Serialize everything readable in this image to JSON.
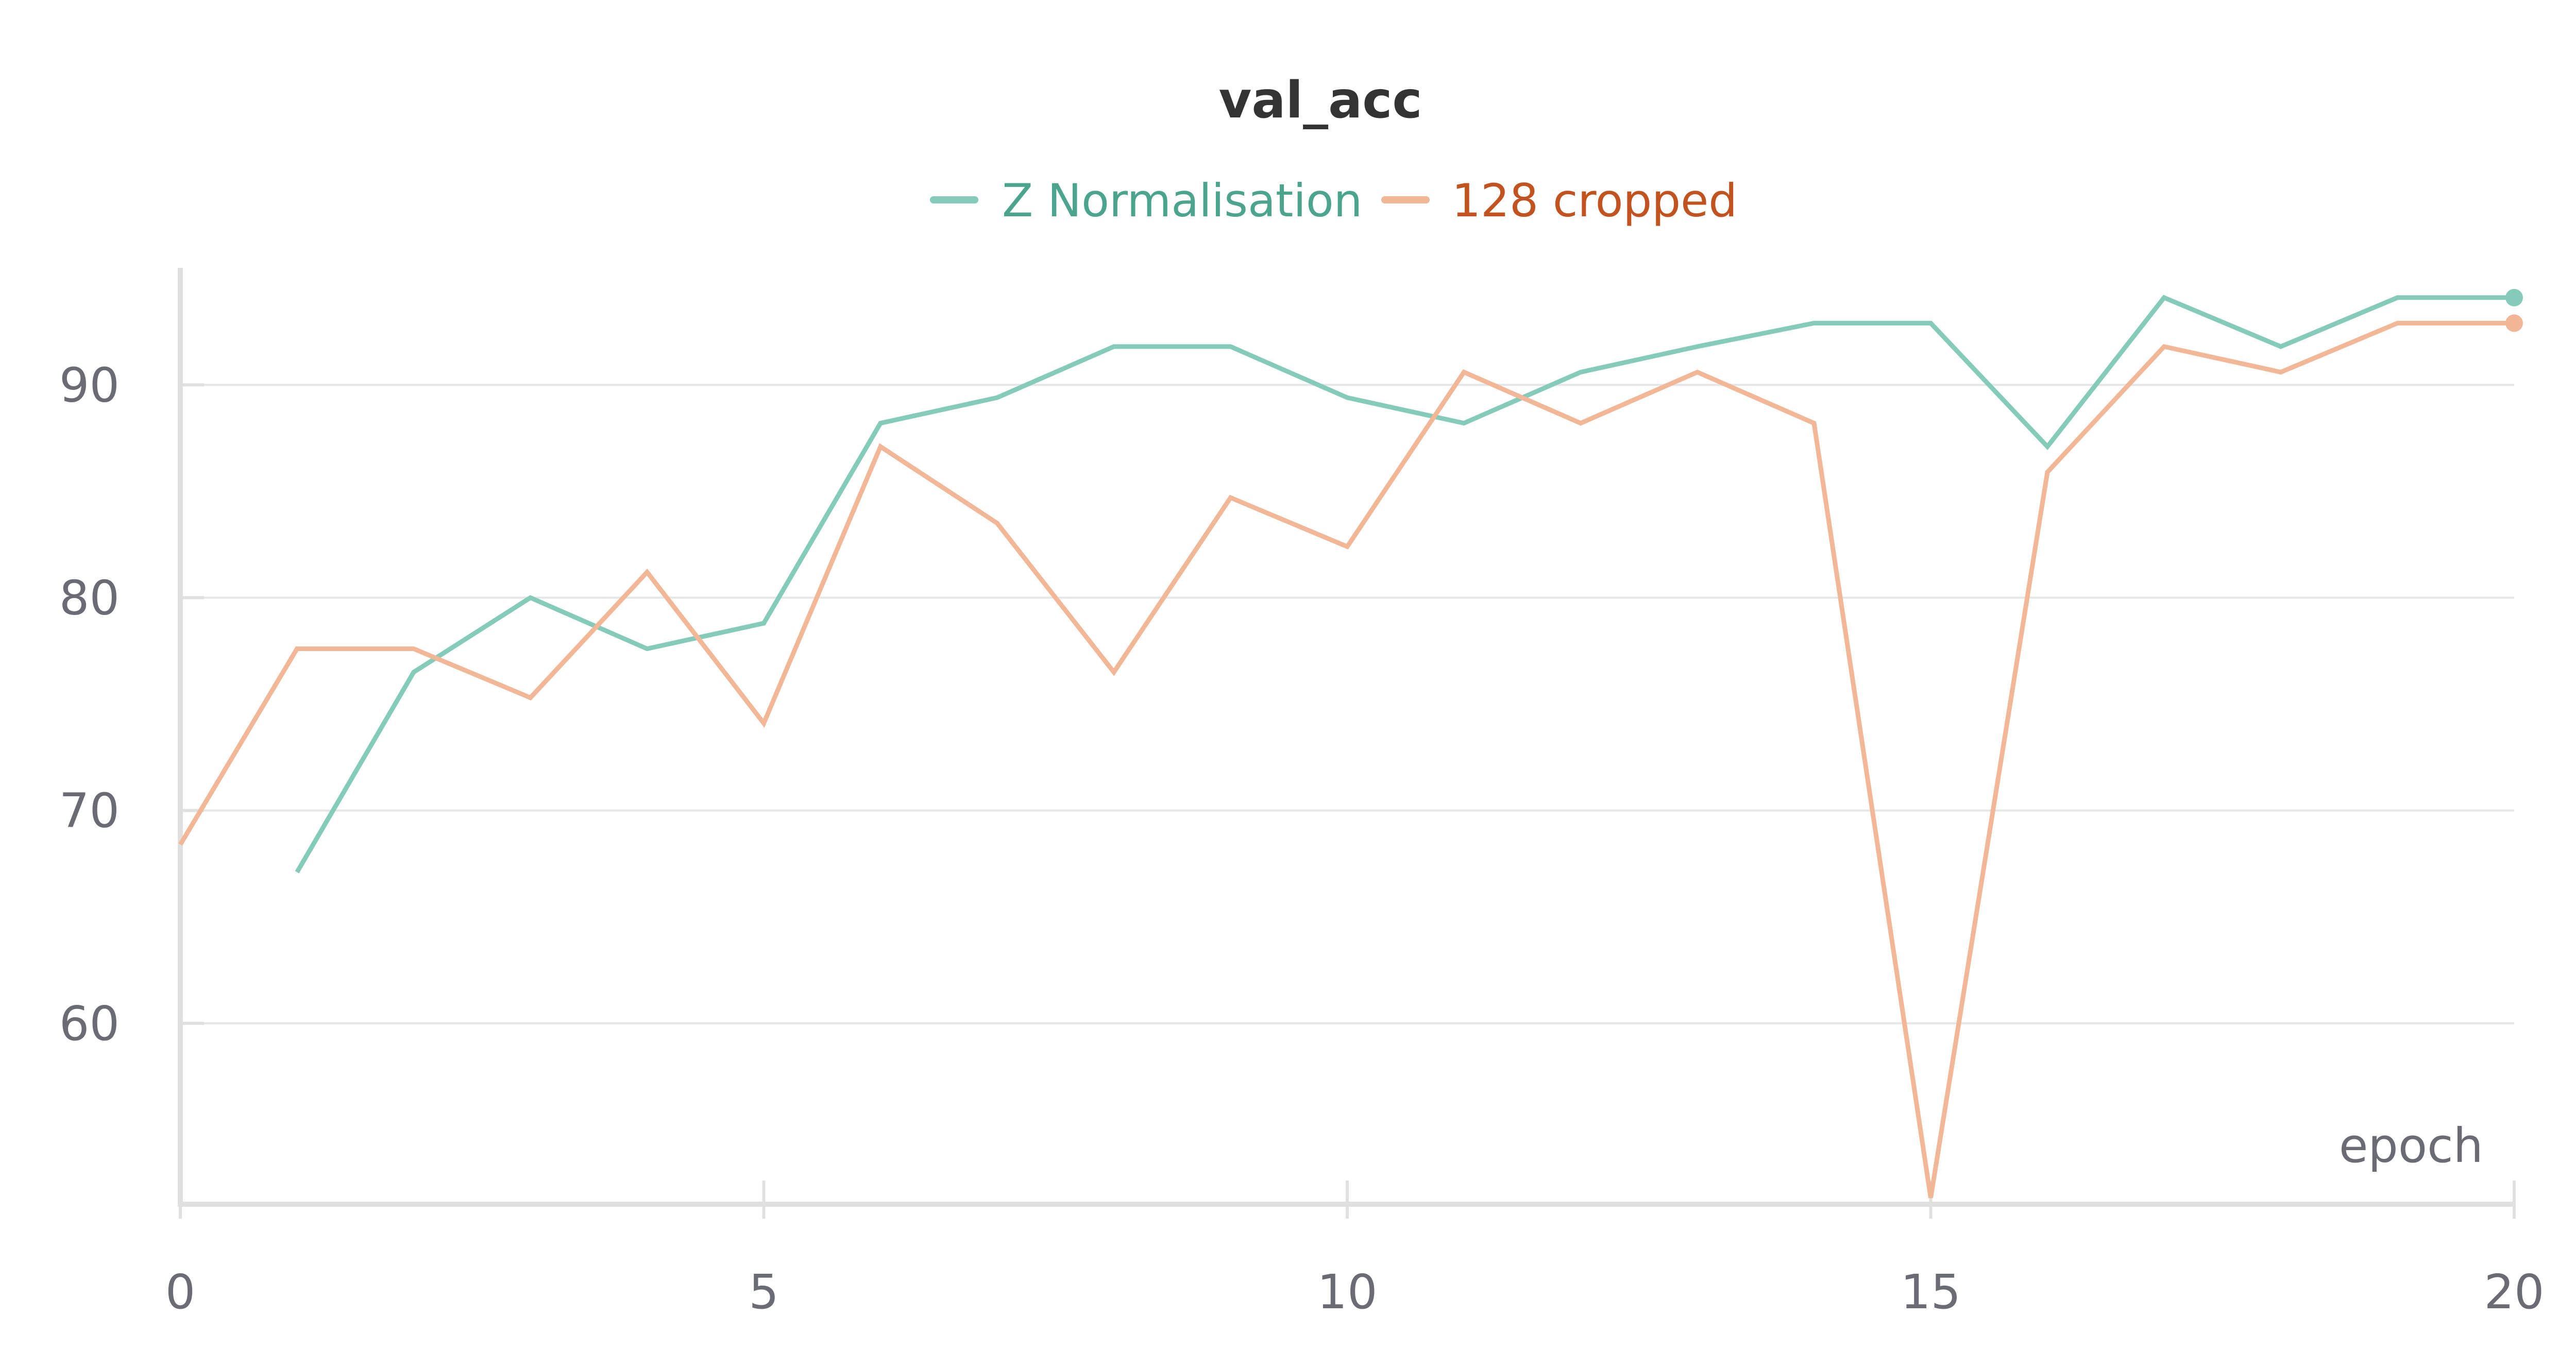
{
  "chart_data": {
    "type": "line",
    "title": "val_acc",
    "xlabel": "epoch",
    "ylabel": "",
    "xlim": [
      0,
      20
    ],
    "ylim": [
      51.5,
      95.5
    ],
    "x_ticks": [
      0,
      5,
      10,
      15,
      20
    ],
    "y_ticks": [
      60,
      70,
      80,
      90
    ],
    "grid": "horizontal",
    "legend_position": "top-center",
    "series": [
      {
        "name": "Z Normalisation",
        "color": "#85cbb9",
        "legend_text_color": "#4ba58e",
        "x": [
          1,
          2,
          3,
          4,
          5,
          6,
          7,
          8,
          9,
          10,
          11,
          12,
          13,
          14,
          15,
          16,
          17,
          18,
          19,
          20
        ],
        "values": [
          67.1,
          76.5,
          80.0,
          77.6,
          78.8,
          88.2,
          89.4,
          91.8,
          91.8,
          89.4,
          88.2,
          90.6,
          91.8,
          92.9,
          92.9,
          87.1,
          94.1,
          91.8,
          94.1,
          94.1
        ]
      },
      {
        "name": "128 cropped",
        "color": "#f1b796",
        "legend_text_color": "#c2521e",
        "x": [
          0,
          1,
          2,
          3,
          4,
          5,
          6,
          7,
          8,
          9,
          10,
          11,
          12,
          13,
          14,
          15,
          16,
          17,
          18,
          19,
          20
        ],
        "values": [
          68.4,
          77.6,
          77.6,
          75.3,
          81.2,
          74.1,
          87.1,
          83.5,
          76.5,
          84.7,
          82.4,
          90.6,
          88.2,
          90.6,
          88.2,
          51.8,
          85.9,
          91.8,
          90.6,
          92.9,
          92.9
        ]
      }
    ]
  }
}
